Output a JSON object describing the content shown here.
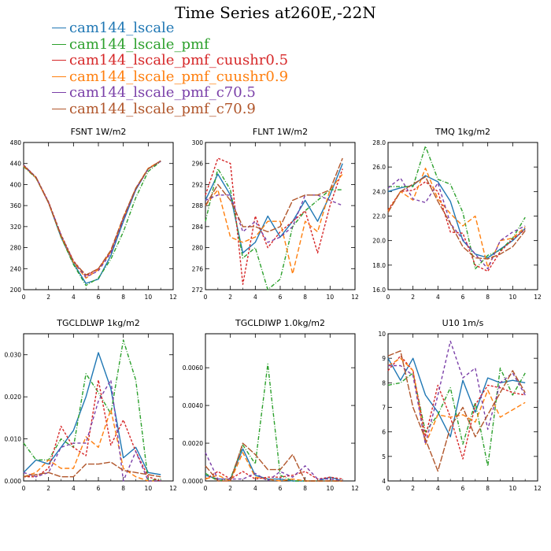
{
  "figure_title": "Time Series at260E,-22N",
  "legend": [
    {
      "label": "cam144_lscale",
      "color": "#1f77b4"
    },
    {
      "label": "cam144_lscale_pmf",
      "color": "#2ca02c"
    },
    {
      "label": "cam144_lscale_pmf_cuushr0.5",
      "color": "#d62728"
    },
    {
      "label": "cam144_lscale_pmf_cuushr0.9",
      "color": "#ff7f0e"
    },
    {
      "label": "cam144_lscale_pmf_c70.5",
      "color": "#7a3fa8"
    },
    {
      "label": "cam144_lscale_pmf_c70.9",
      "color": "#b0552a"
    }
  ],
  "chart_data": [
    {
      "type": "line",
      "title": "FSNT    1W/m2",
      "x": [
        0,
        1,
        2,
        3,
        4,
        5,
        6,
        7,
        8,
        9,
        10,
        11
      ],
      "xlim": [
        0,
        12
      ],
      "xticks": [
        "0",
        "2",
        "4",
        "6",
        "8",
        "10",
        "12"
      ],
      "ylim": [
        200,
        480
      ],
      "yticks": [
        "200",
        "240",
        "280",
        "320",
        "360",
        "400",
        "440",
        "480"
      ],
      "series": [
        {
          "name": "cam144_lscale",
          "values": [
            436,
            413,
            365,
            300,
            250,
            212,
            220,
            265,
            330,
            390,
            430,
            445
          ]
        },
        {
          "name": "cam144_lscale_pmf",
          "values": [
            434,
            412,
            366,
            300,
            248,
            208,
            222,
            258,
            310,
            375,
            425,
            444
          ]
        },
        {
          "name": "cam144_lscale_pmf_cuushr0.5",
          "values": [
            437,
            414,
            367,
            305,
            255,
            226,
            240,
            272,
            335,
            392,
            430,
            445
          ]
        },
        {
          "name": "cam144_lscale_pmf_cuushr0.9",
          "values": [
            435,
            413,
            365,
            302,
            252,
            222,
            238,
            272,
            336,
            393,
            431,
            445
          ]
        },
        {
          "name": "cam144_lscale_pmf_c70.5",
          "values": [
            437,
            414,
            366,
            304,
            254,
            224,
            236,
            270,
            334,
            392,
            430,
            444
          ]
        },
        {
          "name": "cam144_lscale_pmf_c70.9",
          "values": [
            436,
            413,
            365,
            303,
            253,
            228,
            240,
            275,
            338,
            393,
            430,
            445
          ]
        }
      ]
    },
    {
      "type": "line",
      "title": "FLNT    1W/m2",
      "x": [
        0,
        1,
        2,
        3,
        4,
        5,
        6,
        7,
        8,
        9,
        10,
        11
      ],
      "xlim": [
        0,
        12
      ],
      "xticks": [
        "0",
        "2",
        "4",
        "6",
        "8",
        "10",
        "12"
      ],
      "ylim": [
        272,
        300
      ],
      "yticks": [
        "272",
        "276",
        "280",
        "284",
        "288",
        "292",
        "296",
        "300"
      ],
      "series": [
        {
          "name": "cam144_lscale",
          "values": [
            289,
            294,
            290,
            279,
            281,
            286,
            282,
            285,
            289,
            285,
            290,
            296
          ]
        },
        {
          "name": "cam144_lscale_pmf",
          "values": [
            285,
            295,
            291,
            278,
            280,
            272,
            274,
            284,
            287,
            289,
            291,
            291
          ]
        },
        {
          "name": "cam144_lscale_pmf_cuushr0.5",
          "values": [
            290,
            297,
            296,
            273,
            286,
            280,
            283,
            285,
            287,
            279,
            288,
            295
          ]
        },
        {
          "name": "cam144_lscale_pmf_cuushr0.9",
          "values": [
            288,
            291,
            282,
            281,
            282,
            285,
            285,
            275,
            285,
            283,
            291,
            294
          ]
        },
        {
          "name": "cam144_lscale_pmf_c70.5",
          "values": [
            289,
            290,
            290,
            283,
            285,
            281,
            282,
            284,
            290,
            290,
            289,
            288
          ]
        },
        {
          "name": "cam144_lscale_pmf_c70.9",
          "values": [
            288,
            292,
            289,
            284,
            284,
            283,
            284,
            289,
            290,
            290,
            291,
            297
          ]
        }
      ]
    },
    {
      "type": "line",
      "title": "TMQ    1kg/m2",
      "x": [
        0,
        1,
        2,
        3,
        4,
        5,
        6,
        7,
        8,
        9,
        10,
        11
      ],
      "xlim": [
        0,
        12
      ],
      "xticks": [
        "0",
        "2",
        "4",
        "6",
        "8",
        "10",
        "12"
      ],
      "ylim": [
        16,
        28
      ],
      "yticks": [
        "16.0",
        "18.0",
        "20.0",
        "22.0",
        "24.0",
        "26.0",
        "28.0"
      ],
      "series": [
        {
          "name": "cam144_lscale",
          "values": [
            24.0,
            24.3,
            24.5,
            25.3,
            24.8,
            23.2,
            20.0,
            18.9,
            18.6,
            19.3,
            20.0,
            21.0
          ]
        },
        {
          "name": "cam144_lscale_pmf",
          "values": [
            24.4,
            24.4,
            24.4,
            27.7,
            25.0,
            24.6,
            22.3,
            17.7,
            18.8,
            19.2,
            20.2,
            21.9
          ]
        },
        {
          "name": "cam144_lscale_pmf_cuushr0.5",
          "values": [
            22.5,
            24.0,
            24.1,
            24.8,
            24.0,
            20.7,
            20.6,
            18.0,
            17.5,
            19.1,
            20.1,
            20.9
          ]
        },
        {
          "name": "cam144_lscale_pmf_cuushr0.9",
          "values": [
            22.4,
            24.0,
            23.3,
            25.9,
            23.4,
            22.2,
            21.2,
            22.0,
            17.8,
            20.0,
            20.2,
            21.1
          ]
        },
        {
          "name": "cam144_lscale_pmf_c70.5",
          "values": [
            24.3,
            25.1,
            23.4,
            23.1,
            24.7,
            21.4,
            20.1,
            18.9,
            17.7,
            20.0,
            20.7,
            21.2
          ]
        },
        {
          "name": "cam144_lscale_pmf_c70.9",
          "values": [
            22.3,
            24.0,
            24.6,
            25.2,
            23.2,
            21.4,
            19.5,
            18.6,
            18.5,
            18.9,
            19.5,
            20.8
          ]
        }
      ]
    },
    {
      "type": "line",
      "title": "TGCLDLWP    1kg/m2",
      "x": [
        0,
        1,
        2,
        3,
        4,
        5,
        6,
        7,
        8,
        9,
        10,
        11
      ],
      "xlim": [
        0,
        12
      ],
      "xticks": [
        "0",
        "2",
        "4",
        "6",
        "8",
        "10",
        "12"
      ],
      "ylim": [
        0,
        0.035
      ],
      "yticks": [
        "0.000",
        "0.010",
        "0.020",
        "0.030"
      ],
      "ytick_values": [
        0,
        0.01,
        0.02,
        0.03
      ],
      "series": [
        {
          "name": "cam144_lscale",
          "values": [
            0.002,
            0.005,
            0.004,
            0.008,
            0.012,
            0.02,
            0.0305,
            0.022,
            0.0055,
            0.008,
            0.002,
            0.0015
          ]
        },
        {
          "name": "cam144_lscale_pmf",
          "values": [
            0.009,
            0.005,
            0.005,
            0.01,
            0.008,
            0.0255,
            0.021,
            0.016,
            0.0335,
            0.024,
            0.0,
            0.0005
          ]
        },
        {
          "name": "cam144_lscale_pmf_cuushr0.5",
          "values": [
            0.001,
            0.001,
            0.003,
            0.013,
            0.008,
            0.006,
            0.024,
            0.0085,
            0.0145,
            0.007,
            0.001,
            0.0
          ]
        },
        {
          "name": "cam144_lscale_pmf_cuushr0.9",
          "values": [
            0.001,
            0.002,
            0.005,
            0.003,
            0.003,
            0.0105,
            0.008,
            0.017,
            0.003,
            0.001,
            0.0,
            0.0
          ]
        },
        {
          "name": "cam144_lscale_pmf_c70.5",
          "values": [
            0.002,
            0.001,
            0.002,
            0.008,
            0.009,
            0.009,
            0.019,
            0.024,
            0.0,
            0.007,
            0.0,
            0.0
          ]
        },
        {
          "name": "cam144_lscale_pmf_c70.9",
          "values": [
            0.001,
            0.0015,
            0.002,
            0.001,
            0.001,
            0.004,
            0.004,
            0.0045,
            0.0025,
            0.002,
            0.0015,
            0.001
          ]
        }
      ]
    },
    {
      "type": "line",
      "title": "TGCLDIWP    1.0kg/m2",
      "x": [
        0,
        1,
        2,
        3,
        4,
        5,
        6,
        7,
        8,
        9,
        10,
        11
      ],
      "xlim": [
        0,
        12
      ],
      "xticks": [
        "0",
        "2",
        "4",
        "6",
        "8",
        "10",
        "12"
      ],
      "ylim": [
        0,
        0.0078
      ],
      "yticks": [
        "0.0000",
        "0.0020",
        "0.0040",
        "0.0060"
      ],
      "ytick_values": [
        0,
        0.002,
        0.004,
        0.006
      ],
      "series": [
        {
          "name": "cam144_lscale",
          "values": [
            0.0003,
            0.0001,
            0.0001,
            0.0017,
            0.0003,
            0.0001,
            0.0001,
            0.0,
            0.0,
            0.0,
            0.0002,
            0.0
          ]
        },
        {
          "name": "cam144_lscale_pmf",
          "values": [
            0.0004,
            0.0,
            0.0001,
            0.0019,
            0.0009,
            0.0062,
            0.0003,
            0.0,
            0.0,
            0.0,
            0.0,
            0.0
          ]
        },
        {
          "name": "cam144_lscale_pmf_cuushr0.5",
          "values": [
            0.0001,
            0.0005,
            0.0001,
            0.0005,
            0.0001,
            0.0002,
            0.0002,
            0.0003,
            0.0005,
            0.0001,
            0.0002,
            0.0001
          ]
        },
        {
          "name": "cam144_lscale_pmf_cuushr0.9",
          "values": [
            0.0001,
            0.0003,
            0.0,
            0.0015,
            0.0002,
            0.0001,
            0.0,
            0.0001,
            0.0,
            0.0,
            0.0,
            0.0
          ]
        },
        {
          "name": "cam144_lscale_pmf_c70.5",
          "values": [
            0.0015,
            0.0001,
            0.0001,
            0.0001,
            0.0004,
            0.0,
            0.0005,
            0.0002,
            0.0008,
            0.0001,
            0.0001,
            0.0
          ]
        },
        {
          "name": "cam144_lscale_pmf_c70.9",
          "values": [
            0.0008,
            0.0,
            0.0,
            0.002,
            0.0014,
            0.0006,
            0.0006,
            0.0014,
            0.0,
            0.0,
            0.0,
            0.0
          ]
        }
      ]
    },
    {
      "type": "line",
      "title": "U10    1m/s",
      "x": [
        0,
        1,
        2,
        3,
        4,
        5,
        6,
        7,
        8,
        9,
        10,
        11
      ],
      "xlim": [
        0,
        12
      ],
      "xticks": [
        "0",
        "2",
        "4",
        "6",
        "8",
        "10",
        "12"
      ],
      "ylim": [
        4,
        10
      ],
      "yticks": [
        "4",
        "5",
        "6",
        "7",
        "8",
        "9",
        "10"
      ],
      "series": [
        {
          "name": "cam144_lscale",
          "values": [
            9.0,
            8.1,
            9.0,
            7.5,
            6.8,
            5.8,
            8.1,
            6.8,
            8.2,
            8.0,
            8.1,
            8.0
          ]
        },
        {
          "name": "cam144_lscale_pmf",
          "values": [
            7.9,
            8.0,
            8.4,
            6.0,
            6.7,
            7.8,
            5.5,
            7.2,
            4.6,
            8.6,
            7.5,
            8.4
          ]
        },
        {
          "name": "cam144_lscale_pmf_cuushr0.5",
          "values": [
            8.5,
            9.1,
            8.5,
            5.8,
            7.9,
            6.6,
            4.9,
            7.1,
            7.9,
            7.8,
            7.6,
            7.5
          ]
        },
        {
          "name": "cam144_lscale_pmf_cuushr0.9",
          "values": [
            8.7,
            9.0,
            8.5,
            5.5,
            6.7,
            6.6,
            6.7,
            6.4,
            7.7,
            6.6,
            6.9,
            7.2
          ]
        },
        {
          "name": "cam144_lscale_pmf_c70.5",
          "values": [
            8.7,
            8.7,
            8.3,
            5.5,
            7.5,
            9.7,
            8.2,
            8.6,
            6.1,
            8.0,
            8.4,
            7.5
          ]
        },
        {
          "name": "cam144_lscale_pmf_c70.9",
          "values": [
            9.1,
            9.3,
            7.0,
            5.7,
            4.4,
            6.2,
            7.0,
            5.8,
            6.7,
            7.6,
            8.5,
            7.6
          ]
        }
      ]
    }
  ]
}
